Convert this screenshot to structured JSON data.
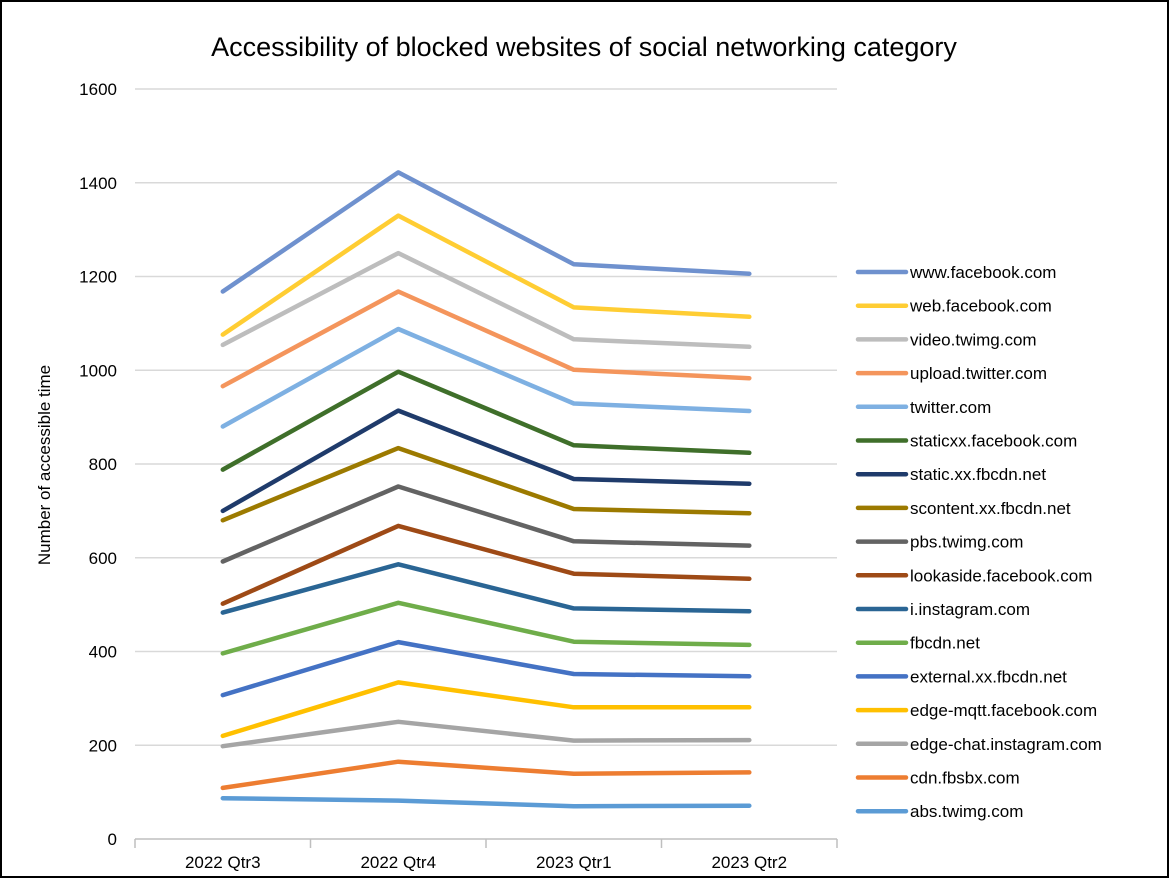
{
  "chart_data": {
    "type": "line",
    "title": "Accessibility of blocked websites of social networking category",
    "xlabel": "",
    "ylabel": "Number of accessible time",
    "categories": [
      "2022 Qtr3",
      "2022 Qtr4",
      "2023 Qtr1",
      "2023 Qtr2"
    ],
    "ylim": [
      0,
      1600
    ],
    "yticks": [
      0,
      200,
      400,
      600,
      800,
      1000,
      1200,
      1400,
      1600
    ],
    "grid": "horizontal",
    "legend_position": "right",
    "series": [
      {
        "name": "www.facebook.com",
        "color": "#6F91CE",
        "values": [
          1168,
          1422,
          1226,
          1206
        ]
      },
      {
        "name": "web.facebook.com",
        "color": "#FFCD33",
        "values": [
          1076,
          1330,
          1134,
          1114
        ]
      },
      {
        "name": "video.twimg.com",
        "color": "#BDBDBD",
        "values": [
          1054,
          1250,
          1066,
          1050
        ]
      },
      {
        "name": "upload.twitter.com",
        "color": "#F4955C",
        "values": [
          966,
          1168,
          1001,
          983
        ]
      },
      {
        "name": "twitter.com",
        "color": "#7EB0E2",
        "values": [
          880,
          1088,
          929,
          913
        ]
      },
      {
        "name": "staticxx.facebook.com",
        "color": "#3F6F2A",
        "values": [
          788,
          997,
          840,
          824
        ]
      },
      {
        "name": "static.xx.fbcdn.net",
        "color": "#1F3B6B",
        "values": [
          700,
          914,
          768,
          758
        ]
      },
      {
        "name": "scontent.xx.fbcdn.net",
        "color": "#9C7A00",
        "values": [
          680,
          834,
          704,
          695
        ]
      },
      {
        "name": "pbs.twimg.com",
        "color": "#636363",
        "values": [
          592,
          752,
          635,
          626
        ]
      },
      {
        "name": "lookaside.facebook.com",
        "color": "#9E4A16",
        "values": [
          502,
          668,
          566,
          555
        ]
      },
      {
        "name": "i.instagram.com",
        "color": "#2A6594",
        "values": [
          483,
          586,
          492,
          486
        ]
      },
      {
        "name": "fbcdn.net",
        "color": "#6FAD4A",
        "values": [
          396,
          504,
          421,
          414
        ]
      },
      {
        "name": "external.xx.fbcdn.net",
        "color": "#4472C4",
        "values": [
          307,
          420,
          352,
          347
        ]
      },
      {
        "name": "edge-mqtt.facebook.com",
        "color": "#FFC000",
        "values": [
          220,
          334,
          281,
          281
        ]
      },
      {
        "name": "edge-chat.instagram.com",
        "color": "#A5A5A5",
        "values": [
          198,
          250,
          210,
          211
        ]
      },
      {
        "name": "cdn.fbsbx.com",
        "color": "#ED7D31",
        "values": [
          109,
          165,
          139,
          142
        ]
      },
      {
        "name": "abs.twimg.com",
        "color": "#5B9BD5",
        "values": [
          87,
          82,
          70,
          71
        ]
      }
    ]
  }
}
